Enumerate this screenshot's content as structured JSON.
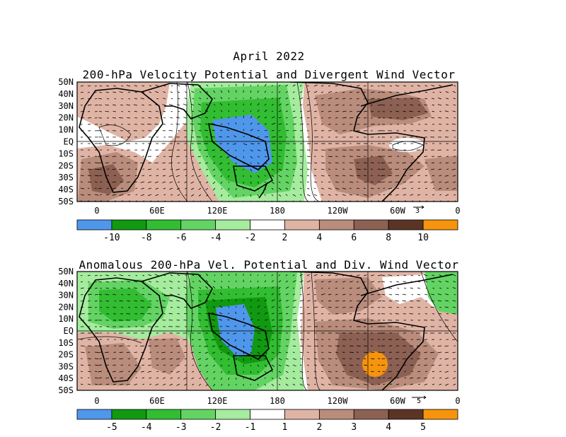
{
  "header": {
    "title": "April 2022"
  },
  "panels": [
    {
      "title": "200-hPa Velocity Potential and Divergent Wind Vector",
      "lat_labels": [
        "50N",
        "40N",
        "30N",
        "20N",
        "10N",
        "EQ",
        "10S",
        "20S",
        "30S",
        "40S",
        "50S"
      ],
      "lon_labels": [
        "0",
        "60E",
        "120E",
        "180",
        "120W",
        "60W",
        "0"
      ],
      "vector_ref": "3",
      "colorbar": {
        "labels": [
          "-10",
          "-8",
          "-6",
          "-4",
          "-2",
          "2",
          "4",
          "6",
          "8",
          "10"
        ],
        "colors": [
          "#4f97ea",
          "#119911",
          "#32bd32",
          "#63d463",
          "#a5ec9e",
          "#ffffff",
          "#e0b4a5",
          "#b98c7c",
          "#8c6052",
          "#5c3426",
          "#f7940d"
        ]
      }
    },
    {
      "title": "Anomalous 200-hPa Vel. Potential and Div. Wind Vector",
      "lat_labels": [
        "50N",
        "40N",
        "30N",
        "20N",
        "10N",
        "EQ",
        "10S",
        "20S",
        "30S",
        "40S",
        "50S"
      ],
      "lon_labels": [
        "0",
        "60E",
        "120E",
        "180",
        "120W",
        "60W",
        "0"
      ],
      "vector_ref": "5",
      "colorbar": {
        "labels": [
          "-5",
          "-4",
          "-3",
          "-2",
          "-1",
          "1",
          "2",
          "3",
          "4",
          "5"
        ],
        "colors": [
          "#4f97ea",
          "#119911",
          "#32bd32",
          "#63d463",
          "#a5ec9e",
          "#ffffff",
          "#e0b4a5",
          "#b98c7c",
          "#8c6052",
          "#5c3426",
          "#f7940d"
        ]
      }
    }
  ]
}
